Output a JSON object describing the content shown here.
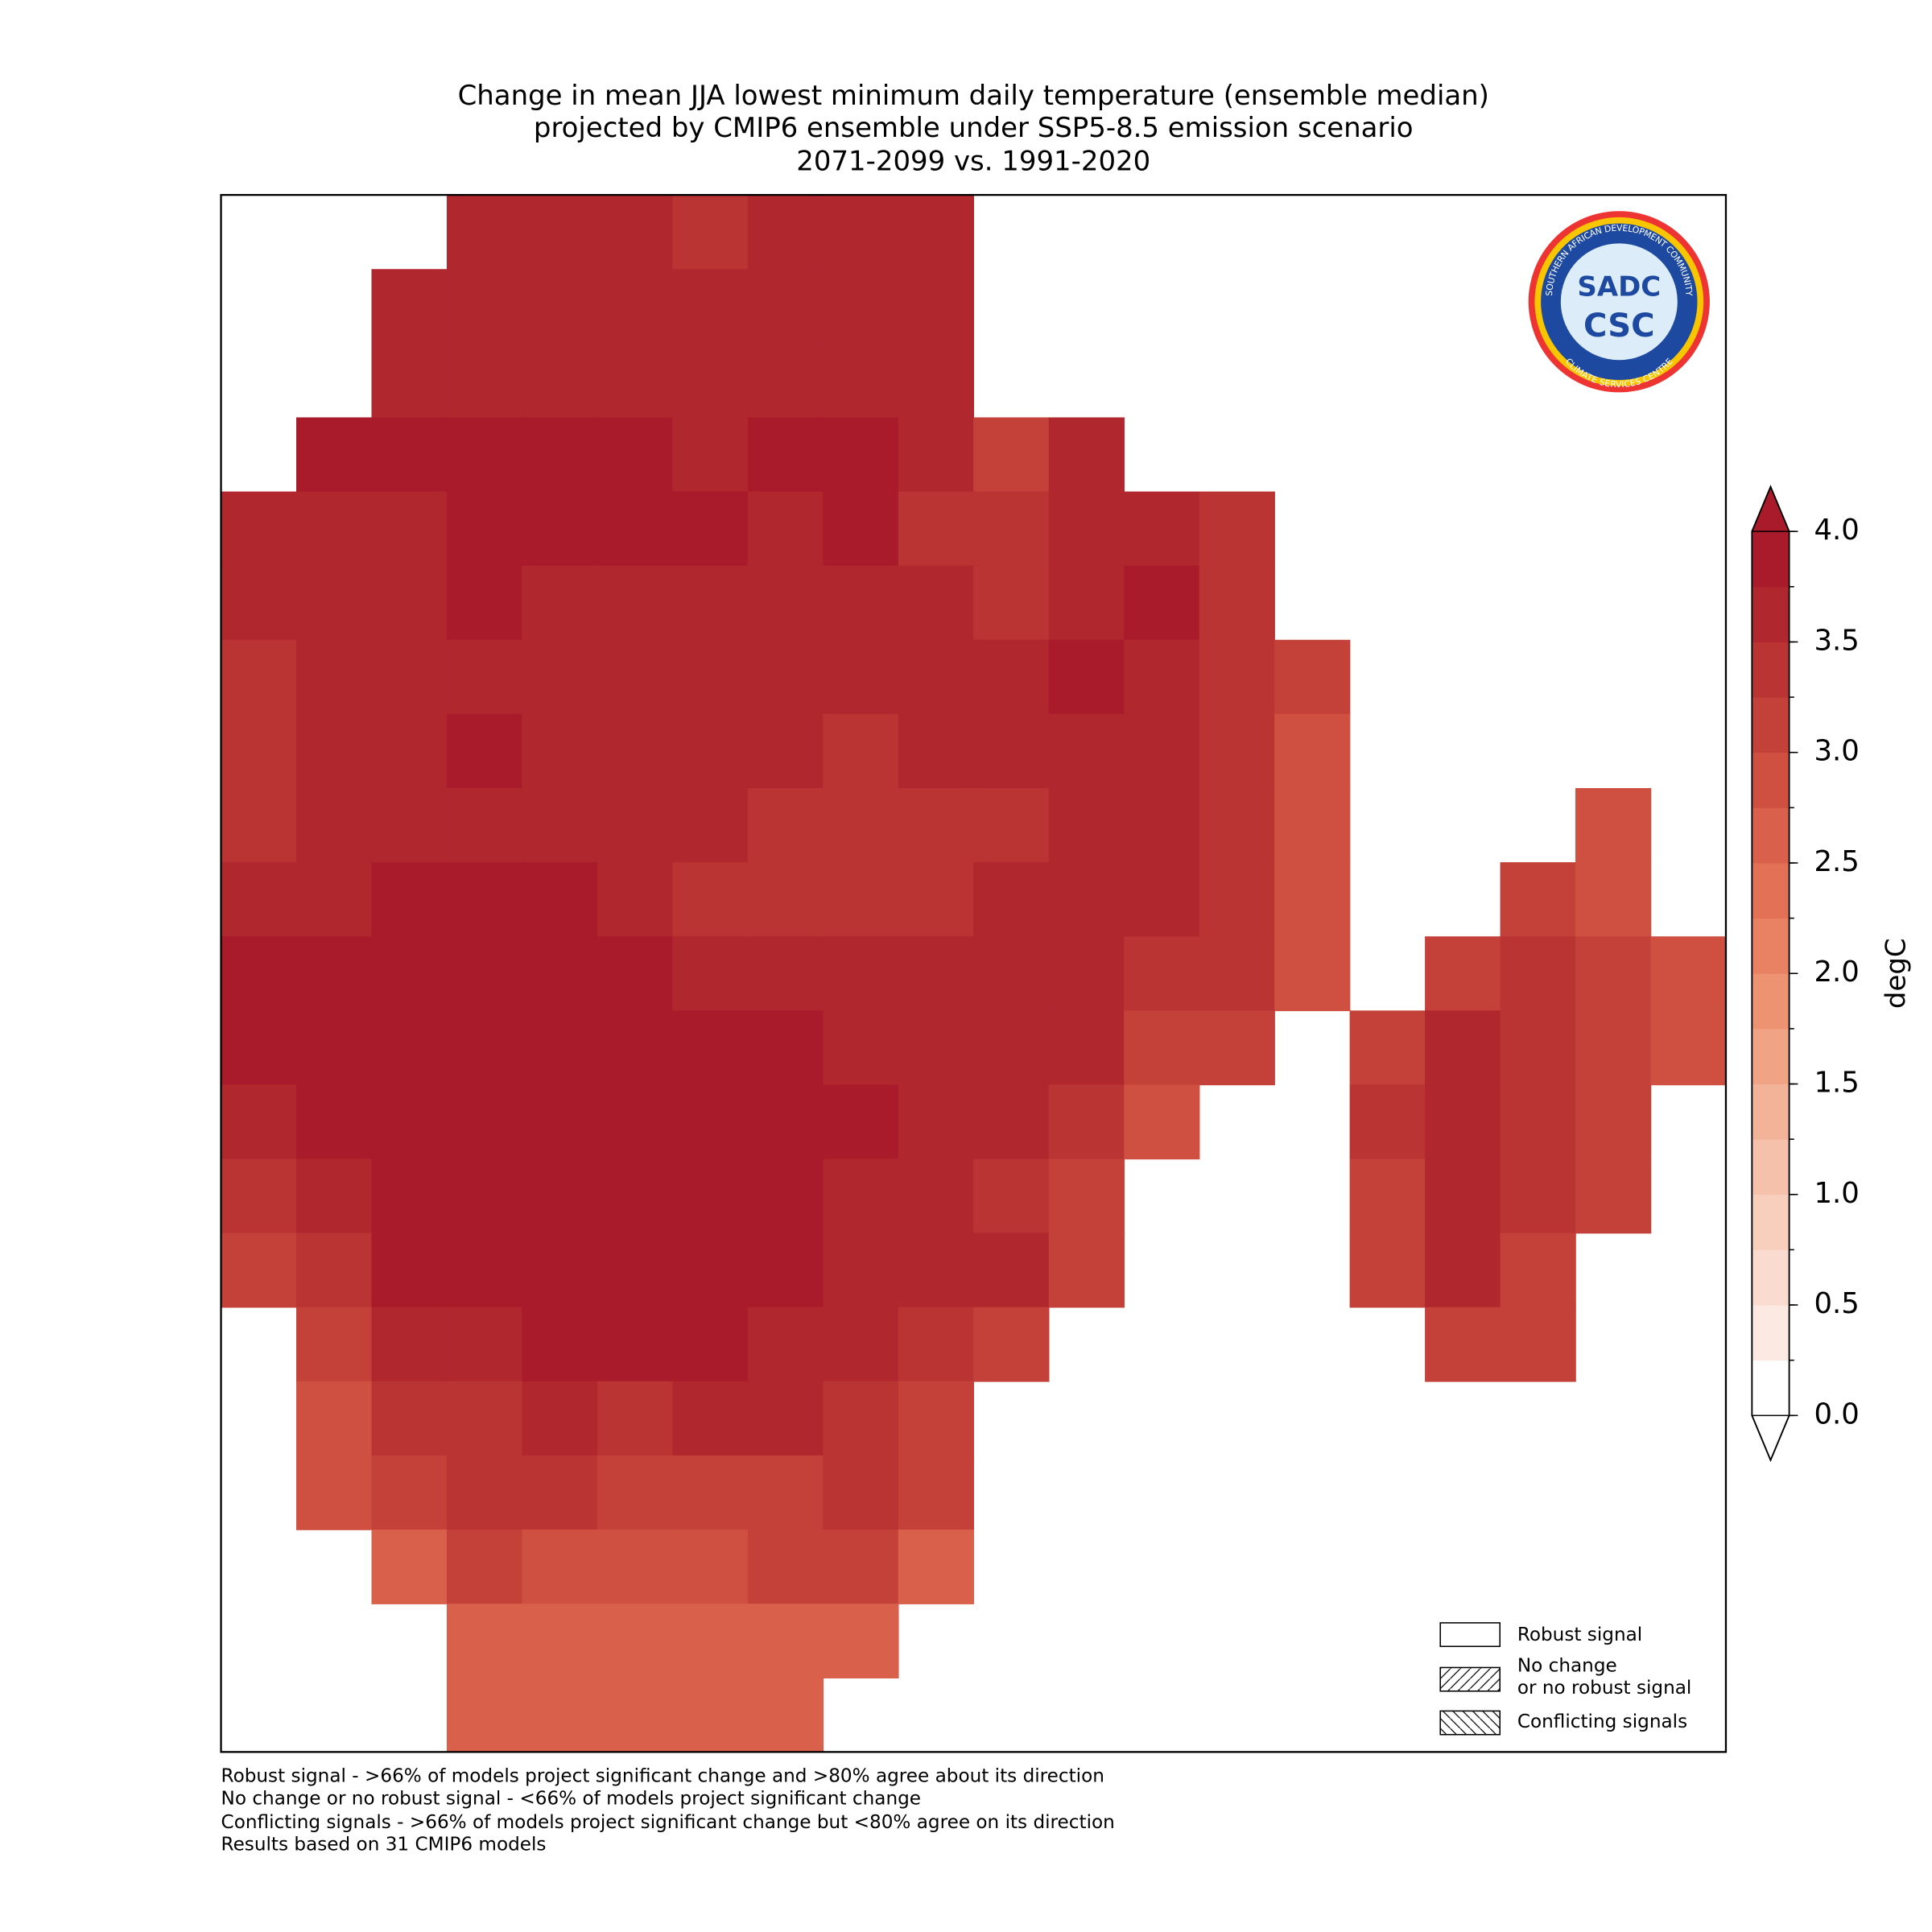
{
  "chart_data": {
    "type": "heatmap",
    "title_lines": [
      "Change in mean JJA lowest minimum daily temperature (ensemble median)",
      "projected by CMIP6 ensemble under SSP5-8.5 emission scenario",
      "2071-2099 vs. 1991-2020"
    ],
    "grid": {
      "values": [
        [
          null,
          null,
          null,
          3.5,
          3.6,
          3.5,
          3.4,
          3.5,
          3.5,
          3.5,
          null,
          null,
          null,
          null,
          null,
          null,
          null,
          null,
          null,
          null
        ],
        [
          null,
          null,
          3.6,
          3.6,
          3.5,
          3.5,
          3.5,
          3.5,
          3.6,
          3.6,
          null,
          null,
          null,
          null,
          null,
          null,
          null,
          null,
          null,
          null
        ],
        [
          null,
          null,
          3.6,
          3.5,
          3.6,
          3.7,
          3.6,
          3.6,
          3.7,
          3.6,
          null,
          null,
          null,
          null,
          null,
          null,
          null,
          null,
          null,
          null
        ],
        [
          null,
          3.8,
          3.8,
          3.9,
          3.9,
          3.8,
          3.7,
          3.8,
          3.8,
          3.5,
          3.2,
          3.5,
          null,
          null,
          null,
          null,
          null,
          null,
          null,
          null
        ],
        [
          3.6,
          3.6,
          3.7,
          3.9,
          3.9,
          3.8,
          3.8,
          3.6,
          3.8,
          3.4,
          3.3,
          3.6,
          3.6,
          3.4,
          null,
          null,
          null,
          null,
          null,
          null
        ],
        [
          3.6,
          3.6,
          3.7,
          3.8,
          3.7,
          3.6,
          3.6,
          3.6,
          3.5,
          3.6,
          3.3,
          3.7,
          3.8,
          3.3,
          null,
          null,
          null,
          null,
          null,
          null
        ],
        [
          3.4,
          3.5,
          3.6,
          3.6,
          3.6,
          3.6,
          3.5,
          3.5,
          3.5,
          3.5,
          3.5,
          3.8,
          3.6,
          3.4,
          3.1,
          null,
          null,
          null,
          null,
          null
        ],
        [
          3.3,
          3.5,
          3.6,
          3.8,
          3.7,
          3.6,
          3.5,
          3.5,
          3.4,
          3.5,
          3.5,
          3.6,
          3.6,
          3.3,
          2.9,
          null,
          null,
          null,
          null,
          null
        ],
        [
          3.4,
          3.6,
          3.7,
          3.7,
          3.6,
          3.6,
          3.5,
          3.4,
          3.4,
          3.4,
          3.4,
          3.6,
          3.5,
          3.4,
          2.9,
          null,
          null,
          null,
          2.8,
          null
        ],
        [
          3.7,
          3.7,
          3.8,
          3.9,
          3.8,
          3.6,
          3.4,
          3.3,
          3.3,
          3.4,
          3.5,
          3.5,
          3.5,
          3.4,
          2.9,
          null,
          null,
          3.0,
          2.9,
          null
        ],
        [
          3.8,
          3.9,
          3.9,
          3.9,
          3.9,
          3.8,
          3.5,
          3.5,
          3.5,
          3.5,
          3.5,
          3.5,
          3.4,
          3.3,
          2.9,
          null,
          3.1,
          3.3,
          3.0,
          2.8
        ],
        [
          3.8,
          3.9,
          3.9,
          3.9,
          3.9,
          3.9,
          3.8,
          3.8,
          3.7,
          3.5,
          3.6,
          3.5,
          3.2,
          3.0,
          null,
          3.2,
          3.5,
          3.4,
          3.1,
          2.8
        ],
        [
          3.7,
          3.9,
          3.9,
          3.9,
          3.9,
          3.9,
          3.9,
          3.8,
          3.8,
          3.5,
          3.5,
          3.3,
          2.9,
          null,
          null,
          3.3,
          3.7,
          3.4,
          3.0,
          null
        ],
        [
          3.3,
          3.6,
          3.9,
          3.9,
          3.9,
          3.9,
          3.9,
          3.8,
          3.7,
          3.6,
          3.4,
          3.2,
          null,
          null,
          null,
          3.1,
          3.6,
          3.4,
          3.0,
          null
        ],
        [
          3.1,
          3.4,
          3.9,
          3.9,
          3.9,
          3.9,
          3.8,
          3.8,
          3.5,
          3.5,
          3.6,
          3.0,
          null,
          null,
          null,
          3.0,
          3.5,
          3.2,
          null,
          null
        ],
        [
          null,
          3.1,
          3.5,
          3.7,
          3.9,
          3.9,
          3.8,
          3.7,
          3.5,
          3.4,
          3.1,
          null,
          null,
          null,
          null,
          null,
          3.0,
          3.1,
          null,
          null
        ],
        [
          null,
          2.9,
          3.3,
          3.4,
          3.5,
          3.4,
          3.5,
          3.5,
          3.4,
          3.2,
          null,
          null,
          null,
          null,
          null,
          null,
          null,
          null,
          null,
          null
        ],
        [
          null,
          2.8,
          3.0,
          3.3,
          3.3,
          3.2,
          3.2,
          3.2,
          3.3,
          3.1,
          null,
          null,
          null,
          null,
          null,
          null,
          null,
          null,
          null,
          null
        ],
        [
          null,
          null,
          2.7,
          3.0,
          2.9,
          2.9,
          2.9,
          3.0,
          3.0,
          2.6,
          null,
          null,
          null,
          null,
          null,
          null,
          null,
          null,
          null,
          null
        ],
        [
          null,
          null,
          null,
          2.7,
          2.6,
          2.7,
          2.6,
          2.7,
          2.6,
          null,
          null,
          null,
          null,
          null,
          null,
          null,
          null,
          null,
          null,
          null
        ],
        [
          null,
          null,
          null,
          2.7,
          2.6,
          2.6,
          2.5,
          2.5,
          null,
          null,
          null,
          null,
          null,
          null,
          null,
          null,
          null,
          null,
          null,
          null
        ]
      ]
    },
    "colorbar": {
      "label": "degC",
      "levels": [
        0,
        0.25,
        0.5,
        0.75,
        1,
        1.25,
        1.5,
        1.75,
        2,
        2.25,
        2.5,
        2.75,
        3,
        3.25,
        3.5,
        3.75,
        4
      ],
      "colors": [
        "#ffffff",
        "#fbe9e2",
        "#f9dccf",
        "#f8cfbd",
        "#f6c1aa",
        "#f3b398",
        "#f0a385",
        "#ed9372",
        "#e98262",
        "#e27156",
        "#d9604a",
        "#cf5041",
        "#c4413a",
        "#ba3433",
        "#b1272e",
        "#a91b2a"
      ],
      "ticks": [
        {
          "value": 0,
          "label": "0.0"
        },
        0.5,
        {
          "value": 1,
          "label": "1.0"
        },
        1.5,
        {
          "value": 2,
          "label": "2.0"
        },
        2.5,
        {
          "value": 3,
          "label": "3.0"
        },
        3.5,
        {
          "value": 4,
          "label": "4.0"
        }
      ]
    },
    "legend": {
      "robust": "Robust signal",
      "no_change": [
        "No change",
        "or no robust signal"
      ],
      "conflicting": "Conflicting signals"
    },
    "notes": [
      "Robust signal - >66% of models project significant change and >80% agree about its direction",
      "No change or no robust signal - <66% of models project significant change",
      "Conflicting signals - >66% of models project significant change but <80% agree on its direction",
      "Results based on 31 CMIP6 models"
    ],
    "logo": {
      "top": "SOUTHERN AFRICAN DEVELOPMENT COMMUNITY",
      "bottom": "CLIMATE SERVICES CENTRE",
      "line1": "SADC",
      "line2": "CSC"
    }
  }
}
